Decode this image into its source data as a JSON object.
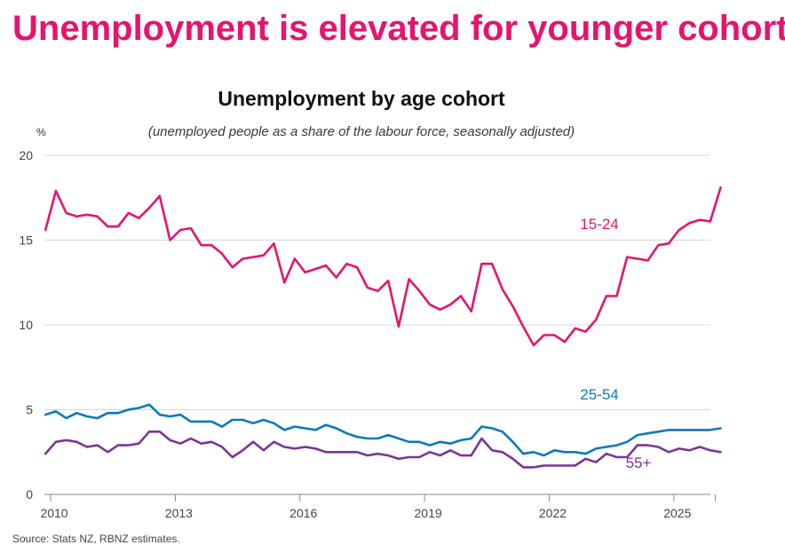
{
  "headline": "Unemployment is elevated for younger cohorts",
  "source": "Source: Stats NZ, RBNZ estimates.",
  "colors": {
    "headline": "#e5146f",
    "15-24": "#e5146f",
    "25-54": "#0a7ab8",
    "55+": "#7a3595",
    "grid": "#d9d9d9"
  },
  "chart_data": {
    "type": "line",
    "title": "Unemployment by age cohort",
    "subtitle": "(unemployed people as a share of the labour force, seasonally adjusted)",
    "ylabel": "%",
    "ylim": [
      0,
      20
    ],
    "yticks": [
      0,
      5,
      10,
      15,
      20
    ],
    "xticks": [
      "2010",
      "2013",
      "2016",
      "2019",
      "2022",
      "2025"
    ],
    "xlim": [
      2009.85,
      2025.88
    ],
    "x_start": 2009.875,
    "x_step": 0.25,
    "grid": "horizontal",
    "series": [
      {
        "name": "15-24",
        "values": [
          15.6,
          17.9,
          16.6,
          16.4,
          16.5,
          16.4,
          15.8,
          15.8,
          16.6,
          16.3,
          16.9,
          17.6,
          15.0,
          15.6,
          15.7,
          14.7,
          14.7,
          14.2,
          13.4,
          13.9,
          14.0,
          14.1,
          14.8,
          12.5,
          13.9,
          13.1,
          13.3,
          13.5,
          12.8,
          13.6,
          13.4,
          12.2,
          12.0,
          12.6,
          9.9,
          12.7,
          12.0,
          11.2,
          10.9,
          11.2,
          11.7,
          10.8,
          13.6,
          13.6,
          12.1,
          11.1,
          9.9,
          8.8,
          9.4,
          9.4,
          9.0,
          9.8,
          9.6,
          10.3,
          11.7,
          11.7,
          14.0,
          13.9,
          13.8,
          14.7,
          14.8,
          15.6,
          16.0,
          16.2,
          16.1,
          18.1
        ]
      },
      {
        "name": "25-54",
        "values": [
          4.7,
          4.9,
          4.5,
          4.8,
          4.6,
          4.5,
          4.8,
          4.8,
          5.0,
          5.1,
          5.3,
          4.7,
          4.6,
          4.7,
          4.3,
          4.3,
          4.3,
          4.0,
          4.4,
          4.4,
          4.2,
          4.4,
          4.2,
          3.8,
          4.0,
          3.9,
          3.8,
          4.1,
          3.9,
          3.6,
          3.4,
          3.3,
          3.3,
          3.5,
          3.3,
          3.1,
          3.1,
          2.9,
          3.1,
          3.0,
          3.2,
          3.3,
          4.0,
          3.9,
          3.7,
          3.1,
          2.4,
          2.5,
          2.3,
          2.6,
          2.5,
          2.5,
          2.4,
          2.7,
          2.8,
          2.9,
          3.1,
          3.5,
          3.6,
          3.7,
          3.8,
          3.8,
          3.8,
          3.8,
          3.8,
          3.9
        ]
      },
      {
        "name": "55+",
        "values": [
          2.4,
          3.1,
          3.2,
          3.1,
          2.8,
          2.9,
          2.5,
          2.9,
          2.9,
          3.0,
          3.7,
          3.7,
          3.2,
          3.0,
          3.3,
          3.0,
          3.1,
          2.8,
          2.2,
          2.6,
          3.1,
          2.6,
          3.1,
          2.8,
          2.7,
          2.8,
          2.7,
          2.5,
          2.5,
          2.5,
          2.5,
          2.3,
          2.4,
          2.3,
          2.1,
          2.2,
          2.2,
          2.5,
          2.3,
          2.6,
          2.3,
          2.3,
          3.3,
          2.6,
          2.5,
          2.1,
          1.6,
          1.6,
          1.7,
          1.7,
          1.7,
          1.7,
          2.1,
          1.9,
          2.4,
          2.2,
          2.2,
          2.9,
          2.9,
          2.8,
          2.5,
          2.7,
          2.6,
          2.8,
          2.6,
          2.5
        ]
      }
    ]
  }
}
